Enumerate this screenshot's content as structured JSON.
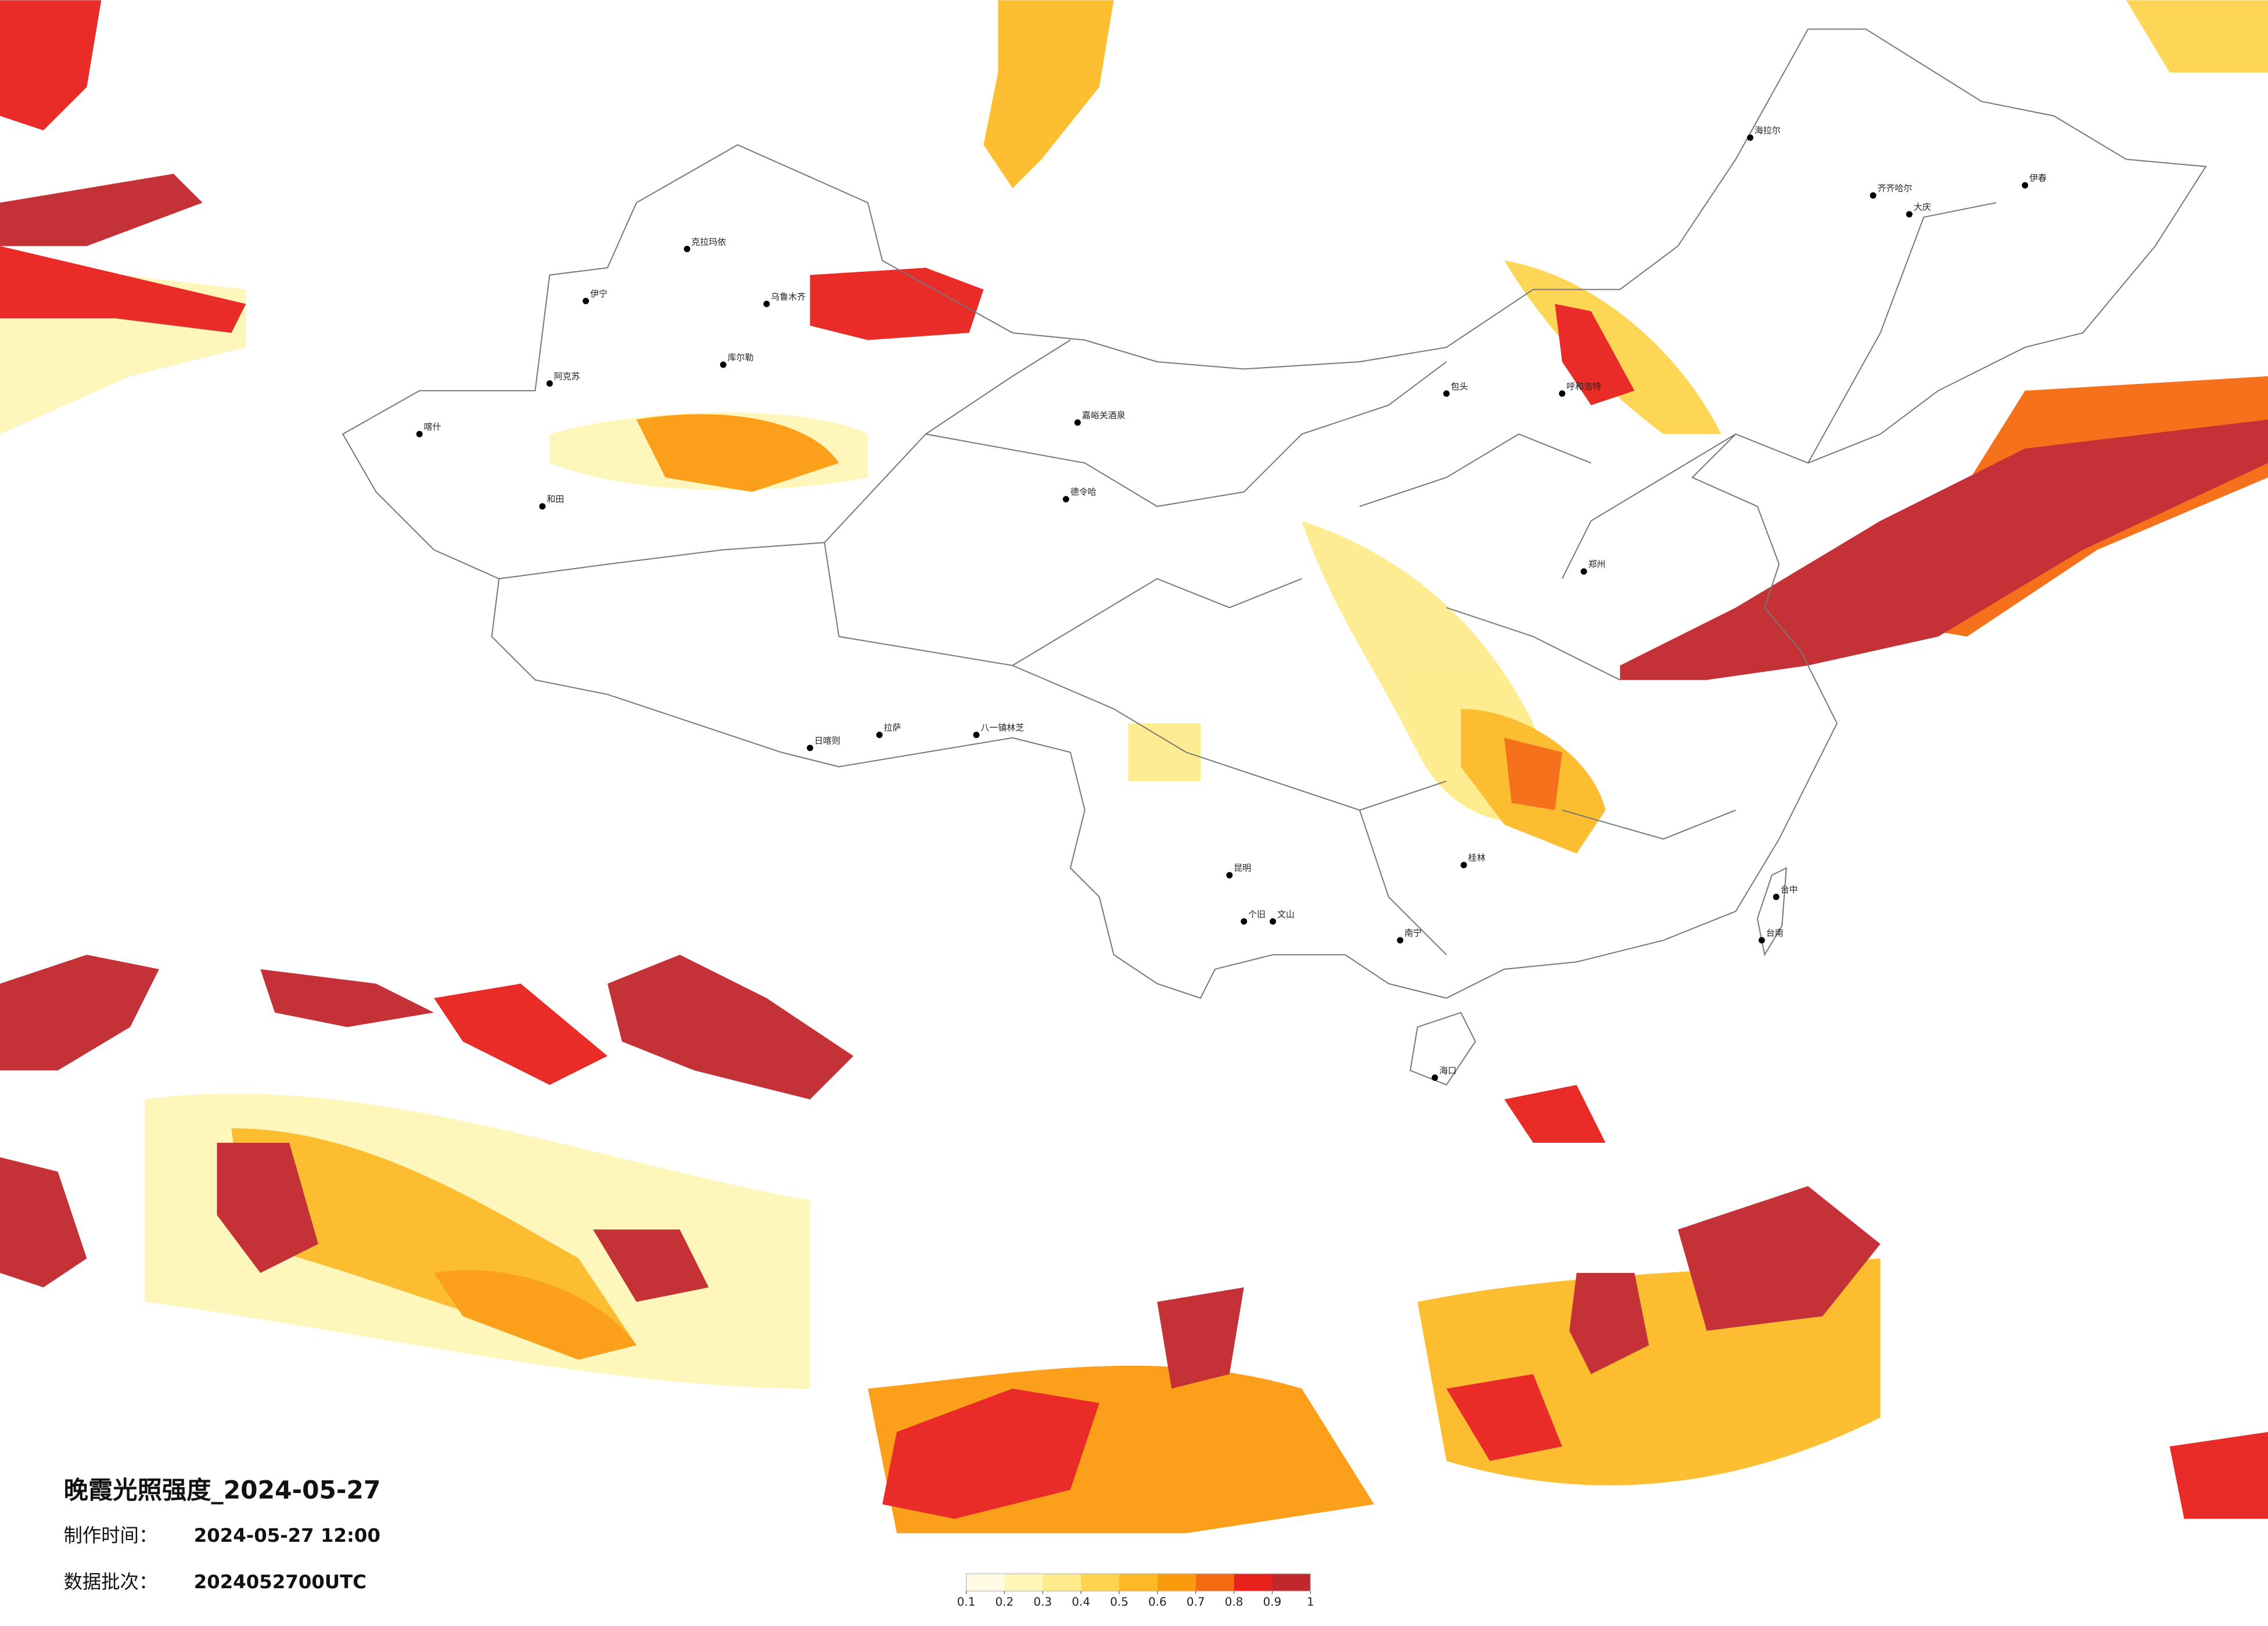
{
  "header": {
    "title": "晚霞光照强度_2024-05-27",
    "made_label": "制作时间：",
    "made_time": "2024-05-27 12:00",
    "batch_label": "数据批次：",
    "batch": "2024052700UTC"
  },
  "legend": {
    "ticks": [
      0.1,
      0.2,
      0.3,
      0.4,
      0.5,
      0.6,
      0.7,
      0.8,
      0.9,
      1
    ],
    "colors": [
      "#fffbe4",
      "#fff6b8",
      "#feeb8c",
      "#fed44e",
      "#fdba26",
      "#fc9a0e",
      "#f56a10",
      "#e8211c",
      "#c1272d"
    ]
  },
  "cities": [
    {
      "name": "伊宁"
    },
    {
      "name": "克拉玛依"
    },
    {
      "name": "乌鲁木齐"
    },
    {
      "name": "阿克苏"
    },
    {
      "name": "喀什"
    },
    {
      "name": "和田"
    },
    {
      "name": "库尔勒"
    },
    {
      "name": "嘉峪关酒泉"
    },
    {
      "name": "德令哈"
    },
    {
      "name": "拉萨"
    },
    {
      "name": "日喀则"
    },
    {
      "name": "八一镇林芝"
    },
    {
      "name": "昆明"
    },
    {
      "name": "个旧"
    },
    {
      "name": "文山"
    },
    {
      "name": "南宁"
    },
    {
      "name": "桂林"
    },
    {
      "name": "台中"
    },
    {
      "name": "台南"
    },
    {
      "name": "海拉尔"
    },
    {
      "name": "齐齐哈尔"
    },
    {
      "name": "大庆"
    },
    {
      "name": "伊春"
    },
    {
      "name": "呼和浩特"
    },
    {
      "name": "包头"
    },
    {
      "name": "郑州"
    },
    {
      "name": "海口"
    }
  ]
}
